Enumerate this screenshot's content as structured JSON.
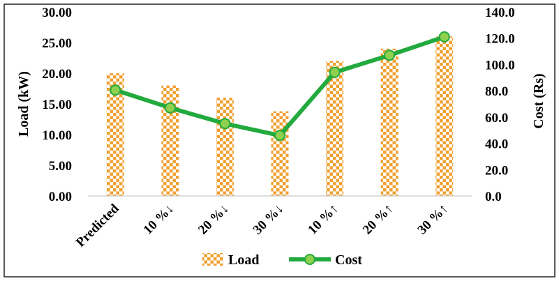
{
  "chart_data": {
    "type": "bar",
    "categories": [
      "Predicted",
      "10 %↓",
      "20 %↓",
      "30 %↓",
      "10 %↑",
      "20 %↑",
      "30 %↑"
    ],
    "series": [
      {
        "name": "Load",
        "kind": "bar",
        "axis": "left",
        "values": [
          20.0,
          18.0,
          16.0,
          13.8,
          22.0,
          24.0,
          26.0
        ]
      },
      {
        "name": "Cost",
        "kind": "line",
        "axis": "right",
        "values": [
          80.5,
          67.0,
          55.0,
          46.0,
          94.0,
          107.0,
          121.0
        ]
      }
    ],
    "y_left": {
      "label": "Load (kW)",
      "min": 0,
      "max": 30,
      "step": 5,
      "ticks": [
        "0.00",
        "5.00",
        "10.00",
        "15.00",
        "20.00",
        "25.00",
        "30.00"
      ]
    },
    "y_right": {
      "label": "Cost (Rs)",
      "min": 0,
      "max": 140,
      "step": 20,
      "ticks": [
        "0.0",
        "20.0",
        "40.0",
        "60.0",
        "80.0",
        "100.0",
        "120.0",
        "140.0"
      ]
    },
    "legend": {
      "position": "bottom",
      "items": [
        "Load",
        "Cost"
      ]
    },
    "grid": false,
    "colors": {
      "bar": "#f0a030",
      "line": "#22aa3e",
      "marker": "#8fd14f",
      "border": "#222222"
    }
  }
}
